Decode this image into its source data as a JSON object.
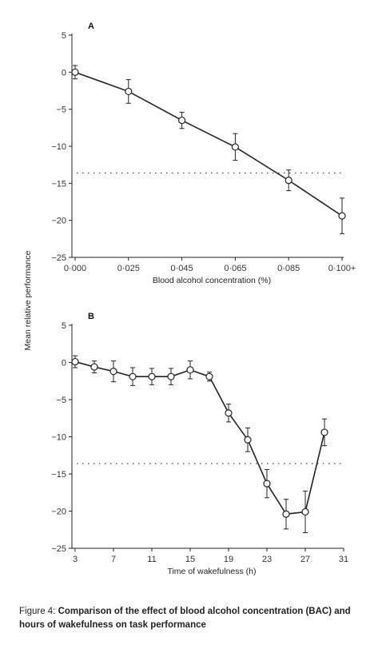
{
  "shared_ylabel": "Mean relative performance",
  "chart_data": [
    {
      "type": "line",
      "panel_label": "A",
      "xlabel": "Blood alcohol concentration (%)",
      "ylabel": "Mean relative performance",
      "categories": [
        "0·000",
        "0·025",
        "0·045",
        "0·065",
        "0·085",
        "0·100+"
      ],
      "values": [
        0,
        -2.6,
        -6.5,
        -10.1,
        -14.6,
        -19.4
      ],
      "error": [
        0.9,
        1.6,
        1.1,
        1.8,
        1.4,
        2.4
      ],
      "yticks": [
        5,
        0,
        -5,
        -10,
        -15,
        -20,
        -25
      ],
      "ytick_labels": [
        "5",
        "0",
        "−5",
        "−10",
        "−15",
        "−20",
        "−25"
      ],
      "ylim": [
        -25,
        5
      ],
      "reference_line": -13.6,
      "grid": false
    },
    {
      "type": "line",
      "panel_label": "B",
      "xlabel": "Time of wakefulness (h)",
      "ylabel": "Mean relative performance",
      "x": [
        3,
        5,
        7,
        9,
        11,
        13,
        15,
        17,
        19,
        21,
        23,
        25,
        27,
        29
      ],
      "values": [
        0.1,
        -0.6,
        -1.2,
        -1.9,
        -1.9,
        -1.9,
        -1.0,
        -1.9,
        -6.8,
        -10.4,
        -16.3,
        -20.4,
        -20.1,
        -9.4
      ],
      "error": [
        0.8,
        0.8,
        1.4,
        1.2,
        1.1,
        1.1,
        1.2,
        0.6,
        1.2,
        1.6,
        1.9,
        2.0,
        2.8,
        1.8
      ],
      "xticks": [
        3,
        7,
        11,
        15,
        19,
        23,
        27,
        31
      ],
      "xtick_labels": [
        "3",
        "7",
        "11",
        "15",
        "19",
        "23",
        "27",
        "31"
      ],
      "yticks": [
        5,
        0,
        -5,
        -10,
        -15,
        -20,
        -25
      ],
      "ytick_labels": [
        "5",
        "0",
        "−5",
        "−10",
        "−15",
        "−20",
        "−25"
      ],
      "xlim": [
        3,
        31
      ],
      "ylim": [
        -25,
        5
      ],
      "reference_line": -13.6,
      "grid": false
    }
  ],
  "caption": {
    "prefix": "Figure 4: ",
    "bold": "Comparison of the effect of blood alcohol concentration (BAC) and hours of wakefulness on task performance"
  }
}
